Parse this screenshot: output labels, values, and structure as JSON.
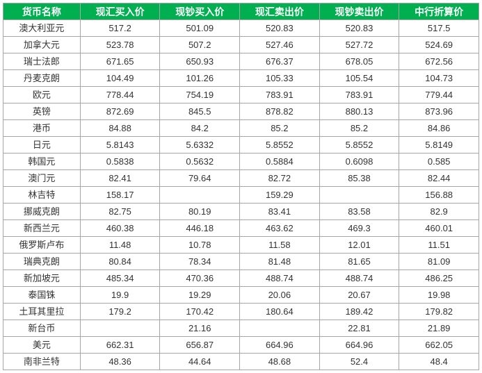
{
  "exchange_table": {
    "type": "table",
    "header_bg": "#00b050",
    "header_fg": "#ffffff",
    "border_color": "#a6a6a6",
    "cell_bg": "#ffffff",
    "cell_fg": "#333333",
    "columns": [
      "货币名称",
      "现汇买入价",
      "现钞买入价",
      "现汇卖出价",
      "现钞卖出价",
      "中行折算价"
    ],
    "rows": [
      [
        "澳大利亚元",
        "517.2",
        "501.09",
        "520.83",
        "520.83",
        "517.5"
      ],
      [
        "加拿大元",
        "523.78",
        "507.2",
        "527.46",
        "527.72",
        "524.69"
      ],
      [
        "瑞士法郎",
        "671.65",
        "650.93",
        "676.37",
        "678.05",
        "672.56"
      ],
      [
        "丹麦克朗",
        "104.49",
        "101.26",
        "105.33",
        "105.54",
        "104.73"
      ],
      [
        "欧元",
        "778.44",
        "754.19",
        "783.91",
        "783.91",
        "779.44"
      ],
      [
        "英镑",
        "872.69",
        "845.5",
        "878.82",
        "880.13",
        "873.96"
      ],
      [
        "港币",
        "84.88",
        "84.2",
        "85.2",
        "85.2",
        "84.86"
      ],
      [
        "日元",
        "5.8143",
        "5.6332",
        "5.8552",
        "5.8552",
        "5.8149"
      ],
      [
        "韩国元",
        "0.5838",
        "0.5632",
        "0.5884",
        "0.6098",
        "0.585"
      ],
      [
        "澳门元",
        "82.41",
        "79.64",
        "82.72",
        "85.38",
        "82.44"
      ],
      [
        "林吉特",
        "158.17",
        "",
        "159.29",
        "",
        "156.88"
      ],
      [
        "挪威克朗",
        "82.75",
        "80.19",
        "83.41",
        "83.58",
        "82.9"
      ],
      [
        "新西兰元",
        "460.38",
        "446.18",
        "463.62",
        "469.3",
        "460.01"
      ],
      [
        "俄罗斯卢布",
        "11.48",
        "10.78",
        "11.58",
        "12.01",
        "11.51"
      ],
      [
        "瑞典克朗",
        "80.84",
        "78.34",
        "81.48",
        "81.65",
        "81.09"
      ],
      [
        "新加坡元",
        "485.34",
        "470.36",
        "488.74",
        "488.74",
        "486.25"
      ],
      [
        "泰国铢",
        "19.9",
        "19.29",
        "20.06",
        "20.67",
        "19.98"
      ],
      [
        "土耳其里拉",
        "179.2",
        "170.42",
        "180.64",
        "189.42",
        "179.82"
      ],
      [
        "新台币",
        "",
        "21.16",
        "",
        "22.81",
        "21.89"
      ],
      [
        "美元",
        "662.31",
        "656.87",
        "664.96",
        "664.96",
        "662.05"
      ],
      [
        "南非兰特",
        "48.36",
        "44.64",
        "48.68",
        "52.4",
        "48.4"
      ]
    ]
  }
}
